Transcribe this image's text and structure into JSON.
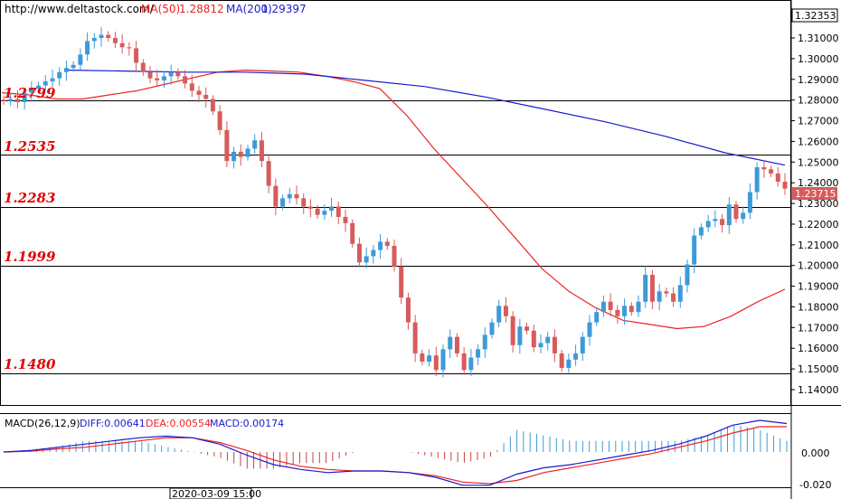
{
  "header": {
    "site": "http://www.deltastock.com/",
    "ma50_label": "MA(50)",
    "ma50_value": "1.28812",
    "ma200_label": "MA(200)",
    "ma200_value": "1.29397"
  },
  "colors": {
    "bull": "#3d9ad8",
    "bear": "#d85b5b",
    "ma50": "#ee2222",
    "ma200": "#1a1acc",
    "diff": "#1a1acc",
    "dea": "#ee2222",
    "hist": "#c44444",
    "histpos": "#3d9ad8",
    "level": "#000000",
    "levelText": "#e00000",
    "grid": "#cccccc"
  },
  "price_box": {
    "top": "1.32353",
    "last": "1.23715"
  },
  "levels": [
    "1.2799",
    "1.2535",
    "1.2283",
    "1.1999",
    "1.1480"
  ],
  "macd_header": {
    "name": "MACD(26,12,9)",
    "diff": "DIFF:0.00641",
    "dea": "DEA:0.00554",
    "macd": "MACD:0.00174"
  },
  "macd_ticks": [
    "0.000",
    "-0.020"
  ],
  "time_label": "2020-03-09 15:00",
  "chart_data": {
    "type": "candlestick",
    "ylim": [
      1.134,
      1.324
    ],
    "y_ticks": [
      "1.31000",
      "1.30000",
      "1.29000",
      "1.28000",
      "1.27000",
      "1.26000",
      "1.25000",
      "1.24000",
      "1.23000",
      "1.22000",
      "1.21000",
      "1.20000",
      "1.19000",
      "1.18000",
      "1.17000",
      "1.16000",
      "1.15000",
      "1.14000"
    ],
    "levels": [
      1.2799,
      1.2535,
      1.2283,
      1.1999,
      1.148
    ],
    "closes": [
      1.2795,
      1.2805,
      1.279,
      1.2835,
      1.2855,
      1.287,
      1.289,
      1.2905,
      1.2935,
      1.2955,
      1.297,
      1.302,
      1.3085,
      1.31,
      1.3115,
      1.31,
      1.3075,
      1.3055,
      1.305,
      1.298,
      1.2935,
      1.2905,
      1.2895,
      1.2915,
      1.2935,
      1.2915,
      1.288,
      1.2845,
      1.2825,
      1.2805,
      1.2745,
      1.2655,
      1.2505,
      1.255,
      1.2525,
      1.2565,
      1.2605,
      1.2505,
      1.2385,
      1.2285,
      1.2325,
      1.2345,
      1.2325,
      1.2285,
      1.2275,
      1.2245,
      1.2265,
      1.2285,
      1.2235,
      1.2205,
      1.2105,
      1.2015,
      1.2045,
      1.2075,
      1.2115,
      1.2095,
      1.1995,
      1.1845,
      1.1725,
      1.1575,
      1.1535,
      1.1565,
      1.1495,
      1.1595,
      1.1655,
      1.1575,
      1.1495,
      1.1555,
      1.1595,
      1.1665,
      1.1725,
      1.1805,
      1.1755,
      1.1615,
      1.1705,
      1.1685,
      1.1605,
      1.1625,
      1.1655,
      1.1575,
      1.1505,
      1.1545,
      1.1575,
      1.1655,
      1.1725,
      1.1775,
      1.1825,
      1.1785,
      1.1755,
      1.1805,
      1.1775,
      1.1825,
      1.1955,
      1.1825,
      1.1875,
      1.1865,
      1.1825,
      1.1905,
      1.2005,
      1.2145,
      1.2185,
      1.2215,
      1.2225,
      1.2195,
      1.2295,
      1.2225,
      1.2255,
      1.2355,
      1.2475,
      1.2465,
      1.2445,
      1.2405,
      1.23715
    ],
    "ma50": [
      1.2835,
      1.2825,
      1.2805,
      1.2805,
      1.2825,
      1.2845,
      1.2875,
      1.2905,
      1.2935,
      1.2945,
      1.294,
      1.2935,
      1.2915,
      1.289,
      1.2855,
      1.2725,
      1.2565,
      1.2425,
      1.2285,
      1.2135,
      1.1985,
      1.1875,
      1.1795,
      1.1735,
      1.1715,
      1.1695,
      1.1705,
      1.1755,
      1.1825,
      1.1885
    ],
    "ma200": [
      1.2945,
      1.294,
      1.2935,
      1.2935,
      1.2925,
      1.2895,
      1.2865,
      1.2815,
      1.2755,
      1.2695,
      1.2625,
      1.2545,
      1.2485
    ],
    "macd_diff": [
      0.0,
      0.001,
      0.003,
      0.005,
      0.007,
      0.009,
      0.01,
      0.009,
      0.005,
      -0.002,
      -0.008,
      -0.011,
      -0.013,
      -0.012,
      -0.012,
      -0.013,
      -0.016,
      -0.021,
      -0.021,
      -0.014,
      -0.01,
      -0.008,
      -0.005,
      -0.002,
      0.001,
      0.005,
      0.01,
      0.017,
      0.02,
      0.018
    ],
    "macd_dea": [
      0.0,
      0.0005,
      0.002,
      0.003,
      0.005,
      0.007,
      0.009,
      0.009,
      0.006,
      0.001,
      -0.005,
      -0.009,
      -0.011,
      -0.012,
      -0.012,
      -0.013,
      -0.015,
      -0.019,
      -0.02,
      -0.018,
      -0.013,
      -0.01,
      -0.007,
      -0.004,
      -0.001,
      0.003,
      0.007,
      0.012,
      0.016,
      0.016
    ],
    "macd_ylim": [
      -0.024,
      0.022
    ]
  }
}
